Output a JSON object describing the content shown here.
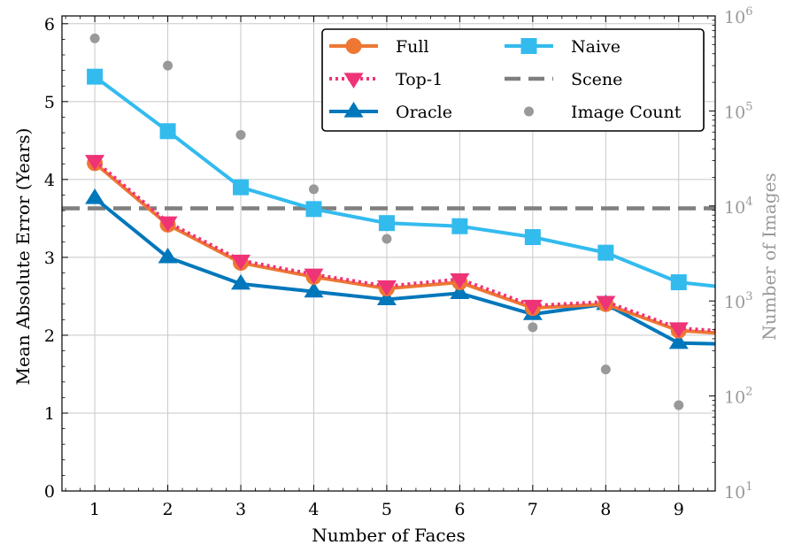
{
  "chart_data": {
    "type": "line",
    "title": "",
    "xlabel": "Number of Faces",
    "ylabel": "Mean Absolute Error (Years)",
    "y2label": "Number of Images",
    "x": [
      1,
      2,
      3,
      4,
      5,
      6,
      7,
      8,
      9
    ],
    "xlim": [
      0.55,
      9.5
    ],
    "ylim": [
      0,
      6.1
    ],
    "y2lim_log10": [
      1,
      6
    ],
    "xticks": [
      "1",
      "2",
      "3",
      "4",
      "5",
      "6",
      "7",
      "8",
      "9"
    ],
    "yticks": [
      "0",
      "1",
      "2",
      "3",
      "4",
      "5",
      "6"
    ],
    "y2ticks": [
      {
        "base": "10",
        "exp": "1"
      },
      {
        "base": "10",
        "exp": "2"
      },
      {
        "base": "10",
        "exp": "3"
      },
      {
        "base": "10",
        "exp": "4"
      },
      {
        "base": "10",
        "exp": "5"
      },
      {
        "base": "10",
        "exp": "6"
      }
    ],
    "grid": true,
    "legend_position": "top-right",
    "series": [
      {
        "name": "Full",
        "color": "#EE7733",
        "style": "solid",
        "marker": "circle",
        "x": [
          1,
          2,
          3,
          4,
          5,
          6,
          7,
          8,
          9,
          9.5
        ],
        "values": [
          4.21,
          3.42,
          2.93,
          2.75,
          2.6,
          2.68,
          2.35,
          2.4,
          2.06,
          2.03
        ]
      },
      {
        "name": "Top-1",
        "color": "#EE3377",
        "style": "dotted",
        "marker": "triangle-down",
        "x": [
          1,
          2,
          3,
          4,
          5,
          6,
          7,
          8,
          9,
          9.5
        ],
        "values": [
          4.24,
          3.45,
          2.96,
          2.78,
          2.63,
          2.72,
          2.38,
          2.43,
          2.09,
          2.06
        ]
      },
      {
        "name": "Oracle",
        "color": "#0077BB",
        "style": "solid",
        "marker": "triangle-up",
        "x": [
          1,
          2,
          3,
          4,
          5,
          6,
          7,
          8,
          9,
          9.5
        ],
        "values": [
          3.76,
          3.0,
          2.66,
          2.56,
          2.46,
          2.54,
          2.27,
          2.4,
          1.9,
          1.89
        ]
      },
      {
        "name": "Naive",
        "color": "#33BBEE",
        "style": "solid",
        "marker": "square",
        "x": [
          1,
          2,
          3,
          4,
          5,
          6,
          7,
          8,
          9,
          9.5
        ],
        "values": [
          5.32,
          4.62,
          3.9,
          3.62,
          3.44,
          3.4,
          3.26,
          3.06,
          2.68,
          2.63
        ]
      },
      {
        "name": "Scene",
        "color": "#7F7F7F",
        "style": "dashed",
        "marker": "none",
        "x": [
          0.55,
          9.5
        ],
        "values": [
          3.63,
          3.63
        ]
      },
      {
        "name": "Image Count",
        "color": "#999999",
        "style": "none",
        "marker": "dot",
        "axis": "right",
        "x": [
          1,
          2,
          3,
          4,
          5,
          6,
          7,
          8,
          9
        ],
        "values": [
          580000,
          300000,
          56000,
          15000,
          4500,
          1400,
          530,
          190,
          80
        ]
      }
    ]
  }
}
